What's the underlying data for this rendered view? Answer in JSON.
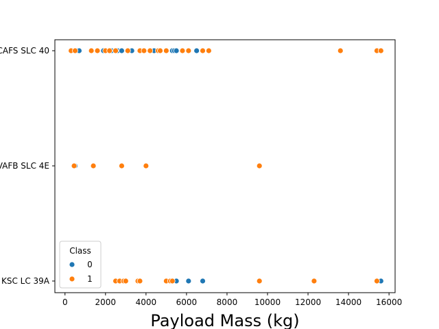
{
  "chart_data": {
    "type": "scatter",
    "title": "",
    "xlabel": "Payload Mass (kg)",
    "ylabel": "",
    "xlim": [
      -500,
      16300
    ],
    "xticks": [
      0,
      2000,
      4000,
      6000,
      8000,
      10000,
      12000,
      14000,
      16000
    ],
    "categories": [
      "CCAFS SLC 40",
      "VAFB SLC 4E",
      "KSC LC 39A"
    ],
    "grid": false,
    "legend": {
      "title": "Class",
      "placement": "lower-left",
      "entries": [
        "0",
        "1"
      ]
    },
    "colors": {
      "0": "#1f77b4",
      "1": "#ff7f0e"
    },
    "series": [
      {
        "name": "0",
        "points": [
          {
            "x": 600,
            "y": "CCAFS SLC 40"
          },
          {
            "x": 700,
            "y": "CCAFS SLC 40"
          },
          {
            "x": 1900,
            "y": "CCAFS SLC 40"
          },
          {
            "x": 2300,
            "y": "CCAFS SLC 40"
          },
          {
            "x": 2600,
            "y": "CCAFS SLC 40"
          },
          {
            "x": 2800,
            "y": "CCAFS SLC 40"
          },
          {
            "x": 3300,
            "y": "CCAFS SLC 40"
          },
          {
            "x": 4400,
            "y": "CCAFS SLC 40"
          },
          {
            "x": 5300,
            "y": "CCAFS SLC 40"
          },
          {
            "x": 5400,
            "y": "CCAFS SLC 40"
          },
          {
            "x": 5500,
            "y": "CCAFS SLC 40"
          },
          {
            "x": 6500,
            "y": "CCAFS SLC 40"
          },
          {
            "x": 500,
            "y": "VAFB SLC 4E"
          },
          {
            "x": 5500,
            "y": "KSC LC 39A"
          },
          {
            "x": 6100,
            "y": "KSC LC 39A"
          },
          {
            "x": 6800,
            "y": "KSC LC 39A"
          },
          {
            "x": 15600,
            "y": "KSC LC 39A"
          }
        ]
      },
      {
        "name": "1",
        "points": [
          {
            "x": 300,
            "y": "CCAFS SLC 40"
          },
          {
            "x": 500,
            "y": "CCAFS SLC 40"
          },
          {
            "x": 1300,
            "y": "CCAFS SLC 40"
          },
          {
            "x": 1600,
            "y": "CCAFS SLC 40"
          },
          {
            "x": 2000,
            "y": "CCAFS SLC 40"
          },
          {
            "x": 2200,
            "y": "CCAFS SLC 40"
          },
          {
            "x": 2500,
            "y": "CCAFS SLC 40"
          },
          {
            "x": 3100,
            "y": "CCAFS SLC 40"
          },
          {
            "x": 3700,
            "y": "CCAFS SLC 40"
          },
          {
            "x": 3900,
            "y": "CCAFS SLC 40"
          },
          {
            "x": 4200,
            "y": "CCAFS SLC 40"
          },
          {
            "x": 4600,
            "y": "CCAFS SLC 40"
          },
          {
            "x": 4700,
            "y": "CCAFS SLC 40"
          },
          {
            "x": 5000,
            "y": "CCAFS SLC 40"
          },
          {
            "x": 5800,
            "y": "CCAFS SLC 40"
          },
          {
            "x": 6100,
            "y": "CCAFS SLC 40"
          },
          {
            "x": 6800,
            "y": "CCAFS SLC 40"
          },
          {
            "x": 7100,
            "y": "CCAFS SLC 40"
          },
          {
            "x": 13600,
            "y": "CCAFS SLC 40"
          },
          {
            "x": 15400,
            "y": "CCAFS SLC 40"
          },
          {
            "x": 15600,
            "y": "CCAFS SLC 40"
          },
          {
            "x": 450,
            "y": "VAFB SLC 4E"
          },
          {
            "x": 1400,
            "y": "VAFB SLC 4E"
          },
          {
            "x": 2800,
            "y": "VAFB SLC 4E"
          },
          {
            "x": 4000,
            "y": "VAFB SLC 4E"
          },
          {
            "x": 9600,
            "y": "VAFB SLC 4E"
          },
          {
            "x": 2500,
            "y": "KSC LC 39A"
          },
          {
            "x": 2700,
            "y": "KSC LC 39A"
          },
          {
            "x": 2900,
            "y": "KSC LC 39A"
          },
          {
            "x": 3000,
            "y": "KSC LC 39A"
          },
          {
            "x": 3600,
            "y": "KSC LC 39A"
          },
          {
            "x": 3700,
            "y": "KSC LC 39A"
          },
          {
            "x": 5000,
            "y": "KSC LC 39A"
          },
          {
            "x": 5200,
            "y": "KSC LC 39A"
          },
          {
            "x": 5300,
            "y": "KSC LC 39A"
          },
          {
            "x": 9600,
            "y": "KSC LC 39A"
          },
          {
            "x": 12300,
            "y": "KSC LC 39A"
          },
          {
            "x": 15400,
            "y": "KSC LC 39A"
          }
        ]
      }
    ]
  }
}
